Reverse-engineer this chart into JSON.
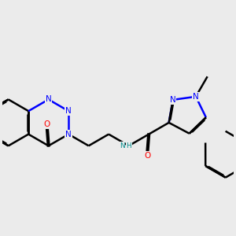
{
  "bg_color": "#ebebeb",
  "bond_color": "#000000",
  "n_color": "#0000ff",
  "o_color": "#ff0000",
  "nh_color": "#008b8b",
  "lw": 1.8,
  "dbo": 0.018,
  "fs": 7.5,
  "figsize": [
    3.0,
    3.0
  ],
  "dpi": 100,
  "xlim": [
    -1.0,
    6.5
  ],
  "ylim": [
    -2.5,
    3.0
  ]
}
